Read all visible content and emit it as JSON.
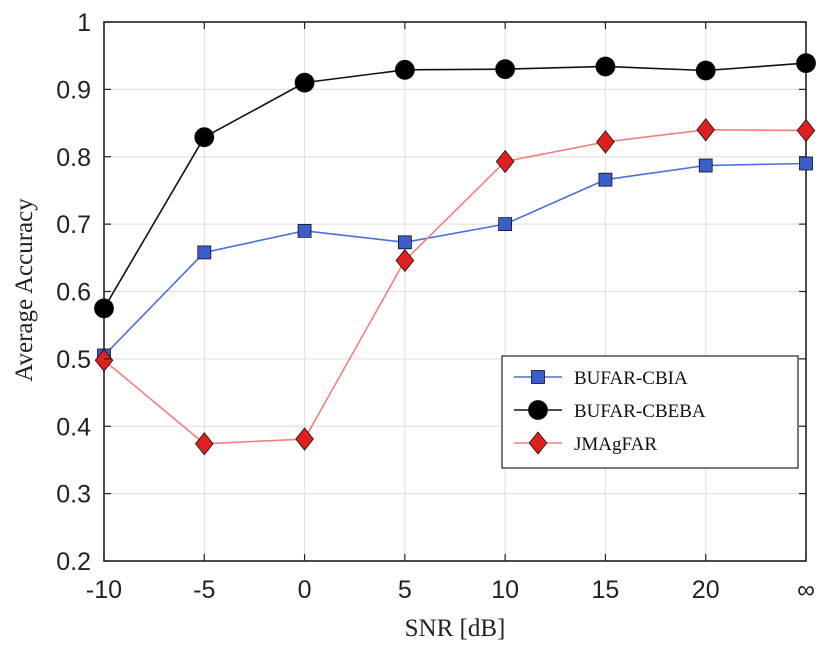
{
  "chart_data": {
    "type": "line",
    "x_tick_labels": [
      "-10",
      "-5",
      "0",
      "5",
      "10",
      "15",
      "20",
      "∞"
    ],
    "xlabel": "SNR [dB]",
    "ylabel": "Average Accuracy",
    "ylim": [
      0.2,
      1.0
    ],
    "y_ticks": [
      0.2,
      0.3,
      0.4,
      0.5,
      0.6,
      0.7,
      0.8,
      0.9,
      1.0
    ],
    "y_tick_labels": [
      "0.2",
      "0.3",
      "0.4",
      "0.5",
      "0.6",
      "0.7",
      "0.8",
      "0.9",
      "1"
    ],
    "grid": true,
    "legend_position": "lower-right",
    "series": [
      {
        "name": "BUFAR-CBIA",
        "color": "#3a5fcd",
        "line_color": "#4a6fdc",
        "marker": "square",
        "values": [
          0.505,
          0.658,
          0.69,
          0.673,
          0.7,
          0.766,
          0.787,
          0.79
        ]
      },
      {
        "name": "BUFAR-CBEBA",
        "color": "#000000",
        "line_color": "#111111",
        "marker": "circle",
        "values": [
          0.575,
          0.829,
          0.91,
          0.929,
          0.93,
          0.934,
          0.928,
          0.939
        ]
      },
      {
        "name": "JMAgFAR",
        "color": "#e02020",
        "line_color": "#f08080",
        "marker": "diamond",
        "values": [
          0.498,
          0.374,
          0.381,
          0.646,
          0.793,
          0.822,
          0.84,
          0.839
        ]
      }
    ]
  }
}
